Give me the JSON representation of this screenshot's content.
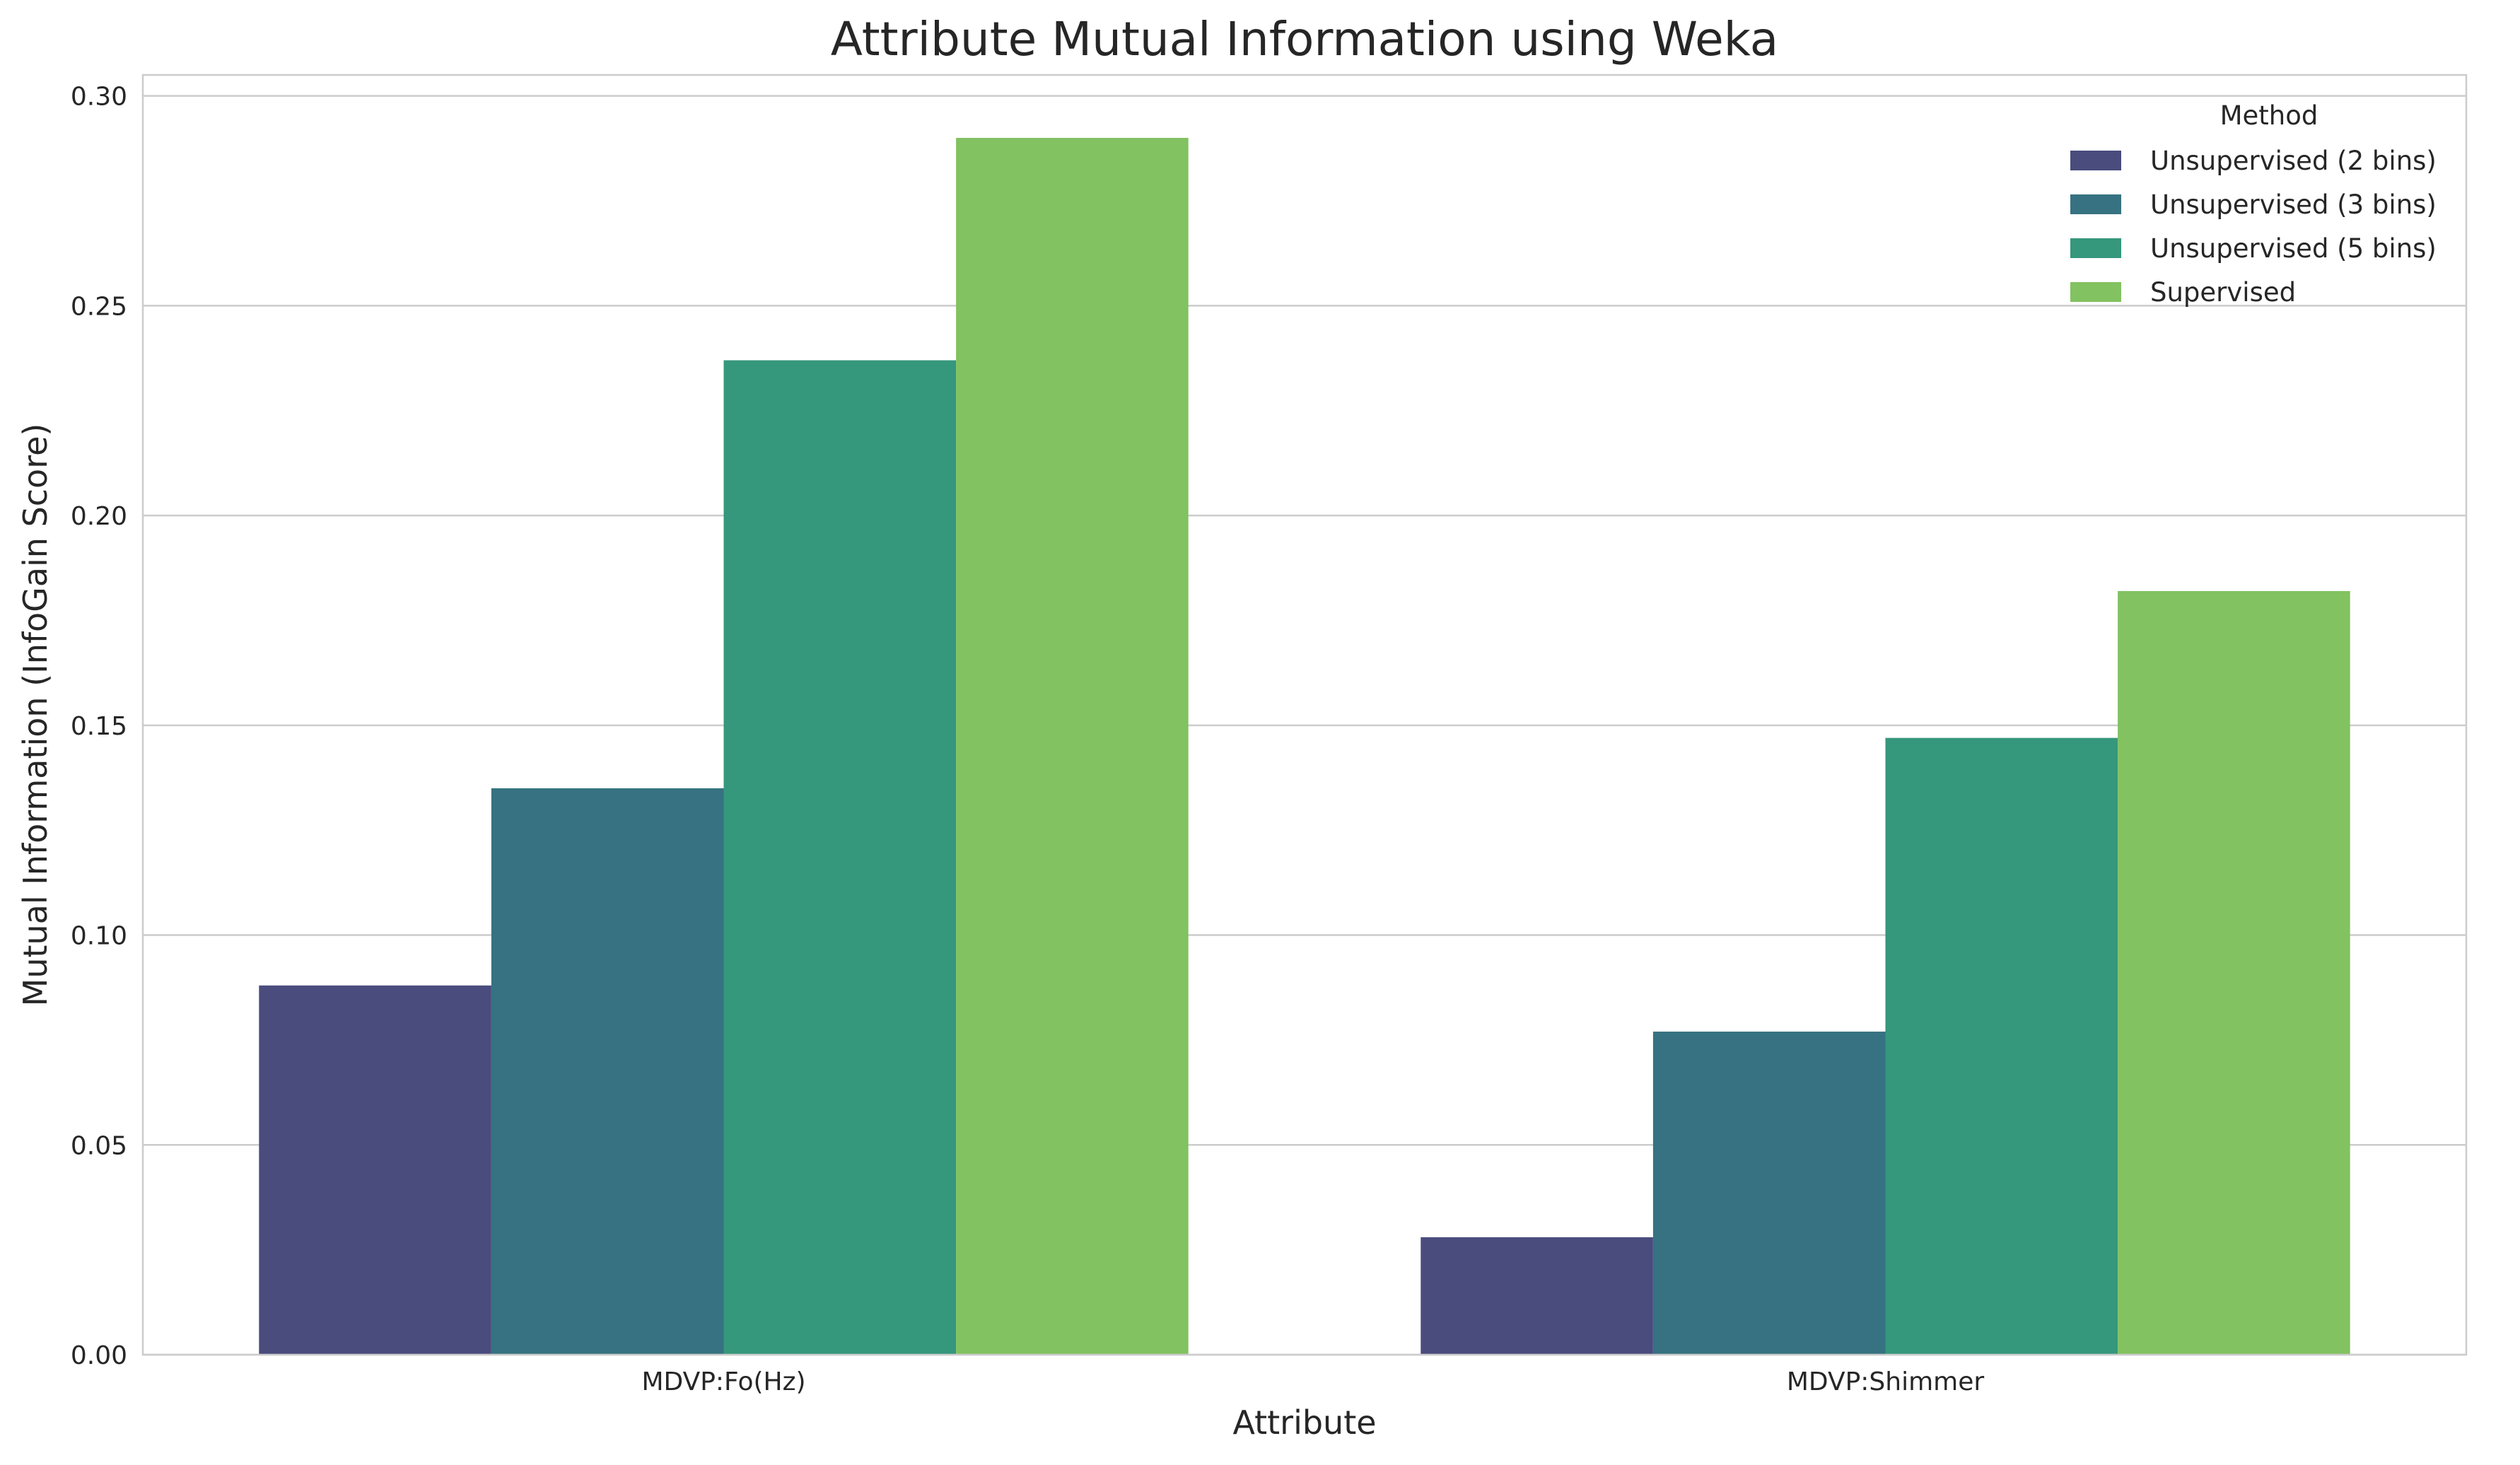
{
  "chart_data": {
    "type": "bar",
    "title": "Attribute Mutual Information using Weka",
    "xlabel": "Attribute",
    "ylabel": "Mutual Information (InfoGain Score)",
    "categories": [
      "MDVP:Fo(Hz)",
      "MDVP:Shimmer"
    ],
    "series": [
      {
        "name": "Unsupervised (2 bins)",
        "color": "#4a4c7d",
        "values": [
          0.088,
          0.028
        ]
      },
      {
        "name": "Unsupervised (3 bins)",
        "color": "#367281",
        "values": [
          0.135,
          0.077
        ]
      },
      {
        "name": "Unsupervised (5 bins)",
        "color": "#35977b",
        "values": [
          0.237,
          0.147
        ]
      },
      {
        "name": "Supervised",
        "color": "#82c261",
        "values": [
          0.29,
          0.182
        ]
      }
    ],
    "ylim": [
      0,
      0.305
    ],
    "yticks": [
      0.0,
      0.05,
      0.1,
      0.15,
      0.2,
      0.25,
      0.3
    ],
    "ytick_labels": [
      "0.00",
      "0.05",
      "0.10",
      "0.15",
      "0.20",
      "0.25",
      "0.30"
    ],
    "grid": true,
    "grid_axis": "y",
    "legend": {
      "title": "Method",
      "placement": "top-right"
    }
  }
}
